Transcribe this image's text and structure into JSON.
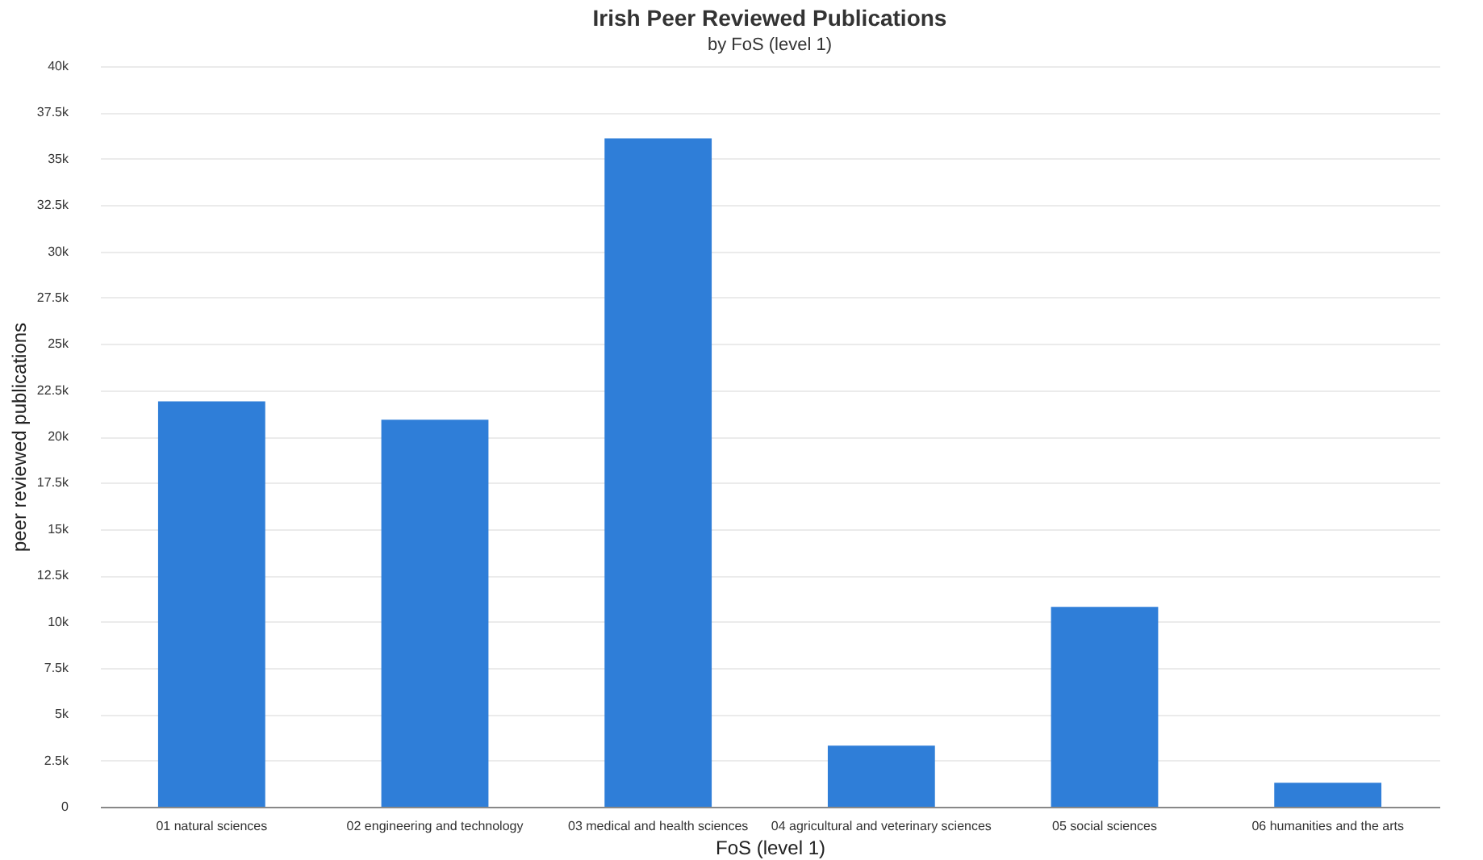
{
  "chart_data": {
    "type": "bar",
    "title": "Irish Peer Reviewed Publications",
    "subtitle": "by FoS (level 1)",
    "xlabel": "FoS (level 1)",
    "ylabel": "peer reviewed publications",
    "categories": [
      "01 natural sciences",
      "02 engineering and technology",
      "03 medical and health sciences",
      "04 agricultural and veterinary sciences",
      "05 social sciences",
      "06 humanities and the arts"
    ],
    "values": [
      21900,
      20900,
      36100,
      3300,
      10800,
      1300
    ],
    "color": "#2f7ed8",
    "ylim": [
      0,
      40000
    ],
    "yticks": [
      {
        "value": 0,
        "label": "0"
      },
      {
        "value": 2500,
        "label": "2.5k"
      },
      {
        "value": 5000,
        "label": "5k"
      },
      {
        "value": 7500,
        "label": "7.5k"
      },
      {
        "value": 10000,
        "label": "10k"
      },
      {
        "value": 12500,
        "label": "12.5k"
      },
      {
        "value": 15000,
        "label": "15k"
      },
      {
        "value": 17500,
        "label": "17.5k"
      },
      {
        "value": 20000,
        "label": "20k"
      },
      {
        "value": 22500,
        "label": "22.5k"
      },
      {
        "value": 25000,
        "label": "25k"
      },
      {
        "value": 27500,
        "label": "27.5k"
      },
      {
        "value": 30000,
        "label": "30k"
      },
      {
        "value": 32500,
        "label": "32.5k"
      },
      {
        "value": 35000,
        "label": "35k"
      },
      {
        "value": 37500,
        "label": "37.5k"
      },
      {
        "value": 40000,
        "label": "40k"
      }
    ],
    "grid": "y"
  }
}
